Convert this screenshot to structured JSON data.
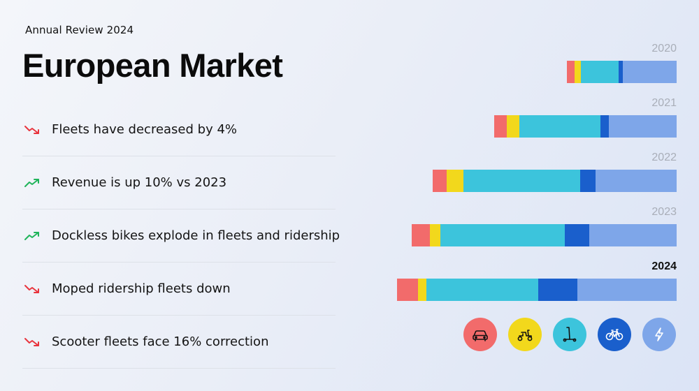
{
  "eyebrow": "Annual Review 2024",
  "title": "European Market",
  "bullets": [
    {
      "text": "Fleets have decreased by 4%",
      "trend": "down"
    },
    {
      "text": "Revenue is up 10% vs 2023",
      "trend": "up"
    },
    {
      "text": "Dockless bikes explode in fleets and ridership",
      "trend": "up"
    },
    {
      "text": "Moped ridership fleets down",
      "trend": "down"
    },
    {
      "text": "Scooter fleets face 16% correction",
      "trend": "down"
    }
  ],
  "colors": {
    "down": "#e8343d",
    "up": "#1fb45a",
    "year_muted": "#a9aeb8",
    "year_active": "#111111"
  },
  "chart_data": {
    "type": "bar",
    "orientation": "horizontal",
    "stacked": true,
    "alignment": "right",
    "title": "",
    "xlabel": "",
    "ylabel": "",
    "categories": [
      "2020",
      "2021",
      "2022",
      "2023",
      "2024"
    ],
    "highlight": "2024",
    "series": [
      {
        "name": "Cars",
        "icon": "car-icon",
        "color": "#f26b6b",
        "values": [
          11,
          18,
          20,
          26,
          30
        ]
      },
      {
        "name": "Mopeds",
        "icon": "moped-icon",
        "color": "#f2d81c",
        "values": [
          9,
          18,
          24,
          15,
          12
        ]
      },
      {
        "name": "Scooters",
        "icon": "kick-scooter-icon",
        "color": "#3cc4dc",
        "values": [
          54,
          116,
          167,
          178,
          160
        ]
      },
      {
        "name": "Dockless bikes",
        "icon": "bicycle-icon",
        "color": "#1a5fcc",
        "values": [
          6,
          12,
          22,
          35,
          56
        ]
      },
      {
        "name": "Other",
        "icon": "lightning-icon",
        "color": "#7ea6e9",
        "values": [
          77,
          97,
          116,
          125,
          142
        ]
      }
    ]
  }
}
